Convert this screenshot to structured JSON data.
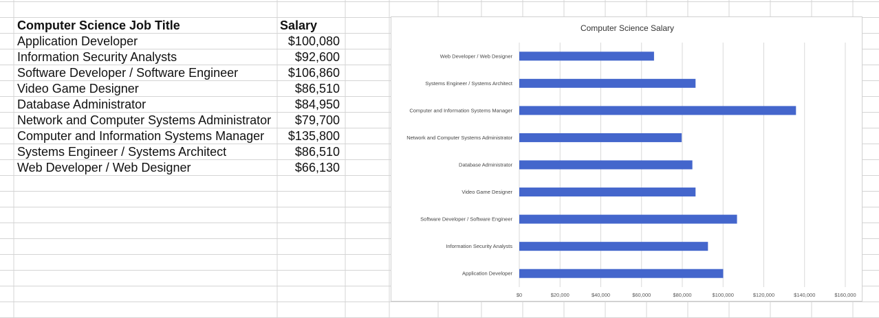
{
  "sheet": {
    "header": {
      "title": "Computer Science Job Title",
      "salary": "Salary"
    },
    "rows": [
      {
        "title": "Application Developer",
        "salary": "$100,080"
      },
      {
        "title": "Information Security Analysts",
        "salary": "$92,600"
      },
      {
        "title": "Software Developer / Software Engineer",
        "salary": "$106,860"
      },
      {
        "title": "Video Game Designer",
        "salary": "$86,510"
      },
      {
        "title": "Database Administrator",
        "salary": "$84,950"
      },
      {
        "title": "Network and Computer Systems Administrator",
        "salary": "$79,700"
      },
      {
        "title": "Computer and Information Systems Manager",
        "salary": "$135,800"
      },
      {
        "title": "Systems Engineer / Systems Architect",
        "salary": "$86,510"
      },
      {
        "title": "Web Developer / Web Designer",
        "salary": "$66,130"
      }
    ]
  },
  "colors": {
    "bar": "#4466cc",
    "grid": "#d9d9d9",
    "cell_border": "#d4d4d4"
  },
  "chart_data": {
    "type": "bar",
    "orientation": "horizontal",
    "title": "Computer Science Salary",
    "categories": [
      "Application Developer",
      "Information Security Analysts",
      "Software Developer / Software Engineer",
      "Video Game Designer",
      "Database Administrator",
      "Network and Computer Systems Administrator",
      "Computer and Information Systems Manager",
      "Systems Engineer / Systems Architect",
      "Web Developer / Web Designer"
    ],
    "values": [
      100080,
      92600,
      106860,
      86510,
      84950,
      79700,
      135800,
      86510,
      66130
    ],
    "xlim": [
      0,
      160000
    ],
    "x_ticks": [
      "$0",
      "$20,000",
      "$40,000",
      "$60,000",
      "$80,000",
      "$100,000",
      "$120,000",
      "$140,000",
      "$160,000"
    ],
    "grid": true,
    "legend": "none"
  }
}
